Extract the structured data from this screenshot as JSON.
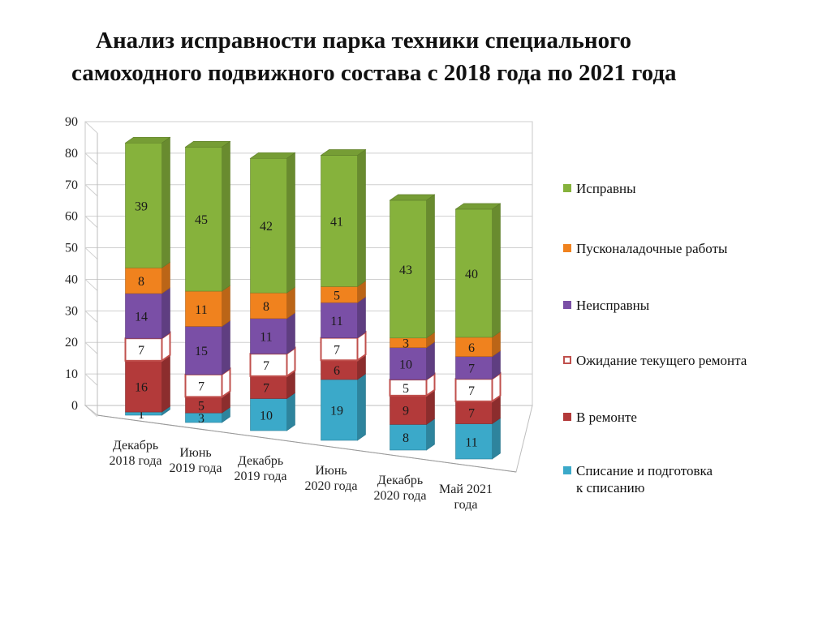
{
  "title": {
    "line1": "Анализ исправности парка техники специального",
    "line2": "самоходного подвижного состава с 2018 года по 2021 года"
  },
  "chart_data": {
    "type": "bar",
    "stacked": true,
    "three_d": true,
    "categories": [
      [
        "Декабрь",
        "2018 года"
      ],
      [
        "Июнь",
        "2019 года"
      ],
      [
        "Декабрь",
        "2019 года"
      ],
      [
        "Июнь",
        "2020 года"
      ],
      [
        "Декабрь",
        "2020 года"
      ],
      [
        "Май 2021",
        "года"
      ]
    ],
    "ylim": [
      0,
      90
    ],
    "yticks": [
      0,
      10,
      20,
      30,
      40,
      50,
      60,
      70,
      80,
      90
    ],
    "grid": true,
    "legend_position": "right",
    "series": [
      {
        "name": "Списание и подготовка\nк списанию",
        "color": "#3ba9c9",
        "values": [
          1,
          3,
          10,
          19,
          8,
          11
        ]
      },
      {
        "name": "В ремонте",
        "color": "#b33a3a",
        "values": [
          16,
          5,
          7,
          6,
          9,
          7
        ]
      },
      {
        "name": "Ожидание текущего ремонта",
        "color": "#ffffff",
        "border": "#c0504d",
        "values": [
          7,
          7,
          7,
          7,
          5,
          7
        ]
      },
      {
        "name": "Неисправны",
        "color": "#7a4fa6",
        "values": [
          14,
          15,
          11,
          11,
          10,
          7
        ]
      },
      {
        "name": "Пусконаладочные работы",
        "color": "#f0821e",
        "values": [
          8,
          11,
          8,
          5,
          3,
          6
        ]
      },
      {
        "name": "Исправны",
        "color": "#86b23c",
        "values": [
          39,
          45,
          42,
          41,
          43,
          40
        ]
      }
    ]
  }
}
